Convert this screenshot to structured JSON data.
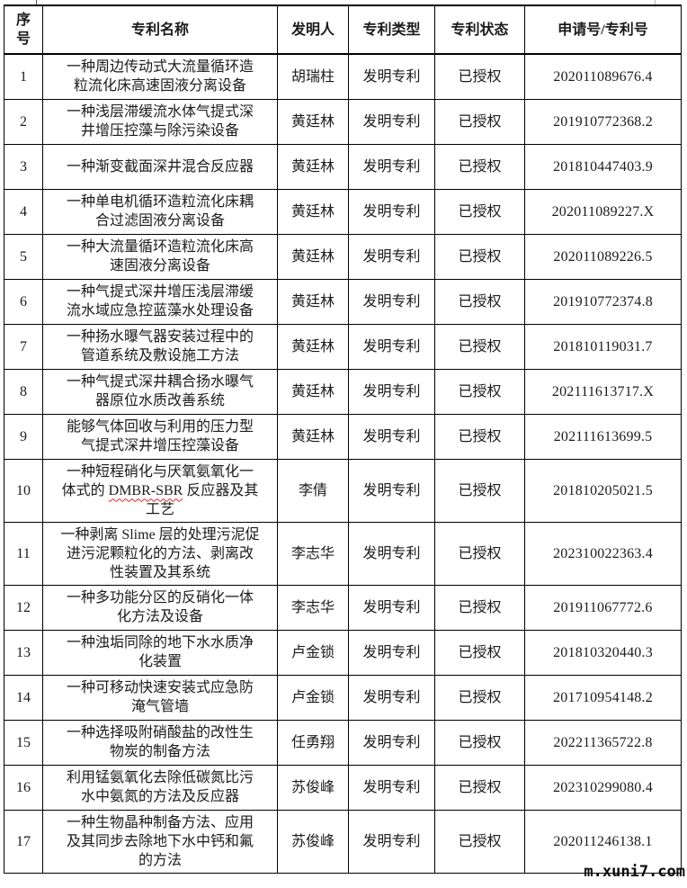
{
  "page": {
    "watermark": "m.xuni7.com"
  },
  "colors": {
    "table_border": "#000000",
    "text": "#1b1b1b",
    "spellcheck_underline": "#dd2222",
    "watermark_text": "#0a0a0a",
    "background": "#ffffff"
  },
  "table": {
    "columns": [
      {
        "key": "index",
        "label": "序号"
      },
      {
        "key": "name",
        "label": "专利名称"
      },
      {
        "key": "inventor",
        "label": "发明人"
      },
      {
        "key": "type",
        "label": "专利类型"
      },
      {
        "key": "status",
        "label": "专利状态"
      },
      {
        "key": "number",
        "label": "申请号/专利号"
      }
    ],
    "rows": [
      {
        "index": "1",
        "name": "一种周边传动式大流量循环造粒流化床高速固液分离设备",
        "inventor": "胡瑞柱",
        "type": "发明专利",
        "status": "已授权",
        "number": "202011089676.4"
      },
      {
        "index": "2",
        "name": "一种浅层滞缓流水体气提式深井增压控藻与除污染设备",
        "inventor": "黄廷林",
        "type": "发明专利",
        "status": "已授权",
        "number": "201910772368.2"
      },
      {
        "index": "3",
        "name": "一种渐变截面深井混合反应器",
        "inventor": "黄廷林",
        "type": "发明专利",
        "status": "已授权",
        "number": "201810447403.9"
      },
      {
        "index": "4",
        "name": "一种单电机循环造粒流化床耦合过滤固液分离设备",
        "inventor": "黄廷林",
        "type": "发明专利",
        "status": "已授权",
        "number": "202011089227.X"
      },
      {
        "index": "5",
        "name": "一种大流量循环造粒流化床高速固液分离设备",
        "inventor": "黄廷林",
        "type": "发明专利",
        "status": "已授权",
        "number": "202011089226.5"
      },
      {
        "index": "6",
        "name": "一种气提式深井增压浅层滞缓流水域应急控蓝藻水处理设备",
        "inventor": "黄廷林",
        "type": "发明专利",
        "status": "已授权",
        "number": "201910772374.8"
      },
      {
        "index": "7",
        "name": "一种扬水曝气器安装过程中的管道系统及敷设施工方法",
        "inventor": "黄廷林",
        "type": "发明专利",
        "status": "已授权",
        "number": "201810119031.7"
      },
      {
        "index": "8",
        "name": "一种气提式深井耦合扬水曝气器原位水质改善系统",
        "inventor": "黄廷林",
        "type": "发明专利",
        "status": "已授权",
        "number": "202111613717.X"
      },
      {
        "index": "9",
        "name": "能够气体回收与利用的压力型气提式深井增压控藻设备",
        "inventor": "黄廷林",
        "type": "发明专利",
        "status": "已授权",
        "number": "202111613699.5"
      },
      {
        "index": "10",
        "name": "一种短程硝化与厌氧氨氧化一体式的 DMBR-SBR 反应器及其工艺",
        "name_parts": [
          {
            "text": "一种短程硝化与厌氧氨氧化一体式的 "
          },
          {
            "text": "DMBR-SBR",
            "error": true
          },
          {
            "text": " 反应器及其工艺"
          }
        ],
        "inventor": "李倩",
        "type": "发明专利",
        "status": "已授权",
        "number": "201810205021.5"
      },
      {
        "index": "11",
        "name": "一种剥离 Slime 层的处理污泥促进污泥颗粒化的方法、剥离改性装置及其系统",
        "inventor": "李志华",
        "type": "发明专利",
        "status": "已授权",
        "number": "202310022363.4"
      },
      {
        "index": "12",
        "name": "一种多功能分区的反硝化一体化方法及设备",
        "inventor": "李志华",
        "type": "发明专利",
        "status": "已授权",
        "number": "201911067772.6"
      },
      {
        "index": "13",
        "name": "一种浊垢同除的地下水水质净化装置",
        "inventor": "卢金锁",
        "type": "发明专利",
        "status": "已授权",
        "number": "201810320440.3"
      },
      {
        "index": "14",
        "name": "一种可移动快速安装式应急防淹气管墙",
        "inventor": "卢金锁",
        "type": "发明专利",
        "status": "已授权",
        "number": "201710954148.2"
      },
      {
        "index": "15",
        "name": "一种选择吸附硝酸盐的改性生物炭的制备方法",
        "inventor": "任勇翔",
        "type": "发明专利",
        "status": "已授权",
        "number": "202211365722.8"
      },
      {
        "index": "16",
        "name": "利用锰氨氧化去除低碳氮比污水中氨氮的方法及反应器",
        "inventor": "苏俊峰",
        "type": "发明专利",
        "status": "已授权",
        "number": "202310299080.4"
      },
      {
        "index": "17",
        "name": "一种生物晶种制备方法、应用及其同步去除地下水中钙和氟的方法",
        "inventor": "苏俊峰",
        "type": "发明专利",
        "status": "已授权",
        "number": "202011246138.1"
      }
    ]
  }
}
